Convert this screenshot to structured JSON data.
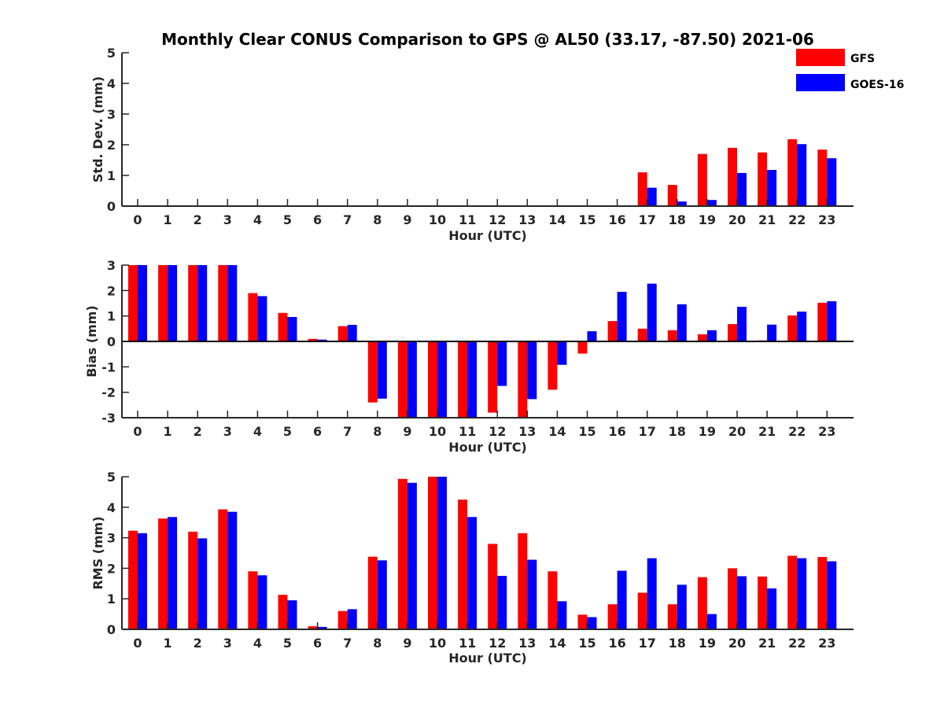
{
  "title": "Monthly Clear CONUS Comparison to GPS @ AL50 (33.17, -87.50) 2021-06",
  "colors": {
    "GFS": "#ff0000",
    "GOES-16": "#0000ff",
    "axis": "#262626"
  },
  "legend": {
    "placement": "top-right",
    "entries": [
      {
        "label": "GFS",
        "color": "#ff0000"
      },
      {
        "label": "GOES-16",
        "color": "#0000ff"
      }
    ]
  },
  "chart_data": [
    {
      "type": "bar",
      "xlabel": "Hour (UTC)",
      "ylabel": "Std. Dev. (mm)",
      "ylim": [
        0,
        5
      ],
      "yticks": [
        "0",
        "1",
        "2",
        "3",
        "4",
        "5"
      ],
      "categories": [
        "0",
        "1",
        "2",
        "3",
        "4",
        "5",
        "6",
        "7",
        "8",
        "9",
        "10",
        "11",
        "12",
        "13",
        "14",
        "15",
        "16",
        "17",
        "18",
        "19",
        "20",
        "21",
        "22",
        "23"
      ],
      "series": [
        {
          "name": "GFS",
          "values": [
            0,
            0,
            0,
            0,
            0,
            0,
            0,
            0,
            0,
            0,
            0,
            0,
            0,
            0,
            0,
            0,
            0,
            1.1,
            0.69,
            1.7,
            1.9,
            1.75,
            2.18,
            1.84
          ]
        },
        {
          "name": "GOES-16",
          "values": [
            0,
            0,
            0,
            0,
            0,
            0,
            0,
            0,
            0,
            0,
            0,
            0,
            0,
            0,
            0,
            0,
            0,
            0.6,
            0.15,
            0.2,
            1.08,
            1.18,
            2.02,
            1.56
          ]
        }
      ]
    },
    {
      "type": "bar",
      "xlabel": "Hour (UTC)",
      "ylabel": "Bias (mm)",
      "ylim": [
        -3,
        3
      ],
      "yticks": [
        "-3",
        "-2",
        "-1",
        "0",
        "1",
        "2",
        "3"
      ],
      "categories": [
        "0",
        "1",
        "2",
        "3",
        "4",
        "5",
        "6",
        "7",
        "8",
        "9",
        "10",
        "11",
        "12",
        "13",
        "14",
        "15",
        "16",
        "17",
        "18",
        "19",
        "20",
        "21",
        "22",
        "23"
      ],
      "series": [
        {
          "name": "GFS",
          "values": [
            3,
            3,
            3,
            3,
            1.9,
            1.12,
            0.1,
            0.6,
            -2.4,
            -3,
            -3,
            -3,
            -2.8,
            -3,
            -1.9,
            -0.48,
            0.8,
            0.5,
            0.44,
            0.28,
            0.68,
            0.04,
            1.02,
            1.52
          ]
        },
        {
          "name": "GOES-16",
          "values": [
            3,
            3,
            3,
            3,
            1.78,
            0.96,
            0.07,
            0.65,
            -2.25,
            -3,
            -3,
            -3,
            -1.75,
            -2.27,
            -0.92,
            0.4,
            1.95,
            2.27,
            1.46,
            0.44,
            1.36,
            0.66,
            1.17,
            1.58
          ]
        }
      ]
    },
    {
      "type": "bar",
      "xlabel": "Hour (UTC)",
      "ylabel": "RMS (mm)",
      "ylim": [
        0,
        5
      ],
      "yticks": [
        "0",
        "1",
        "2",
        "3",
        "4",
        "5"
      ],
      "categories": [
        "0",
        "1",
        "2",
        "3",
        "4",
        "5",
        "6",
        "7",
        "8",
        "9",
        "10",
        "11",
        "12",
        "13",
        "14",
        "15",
        "16",
        "17",
        "18",
        "19",
        "20",
        "21",
        "22",
        "23"
      ],
      "series": [
        {
          "name": "GFS",
          "values": [
            3.23,
            3.63,
            3.2,
            3.93,
            1.9,
            1.13,
            0.1,
            0.6,
            2.38,
            4.93,
            5,
            4.25,
            2.8,
            3.15,
            1.9,
            0.48,
            0.82,
            1.2,
            0.82,
            1.71,
            2.0,
            1.73,
            2.41,
            2.37
          ]
        },
        {
          "name": "GOES-16",
          "values": [
            3.15,
            3.68,
            2.98,
            3.85,
            1.77,
            0.95,
            0.08,
            0.66,
            2.26,
            4.8,
            5,
            3.68,
            1.75,
            2.28,
            0.92,
            0.4,
            1.92,
            2.33,
            1.46,
            0.5,
            1.74,
            1.34,
            2.33,
            2.23
          ]
        }
      ]
    }
  ]
}
